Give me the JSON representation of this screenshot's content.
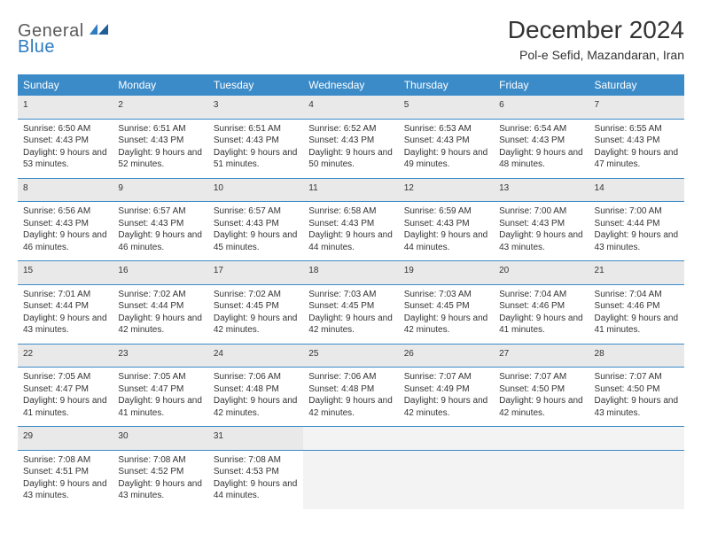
{
  "brand": {
    "general": "General",
    "blue": "Blue"
  },
  "title": "December 2024",
  "location": "Pol-e Sefid, Mazandaran, Iran",
  "header_bg": "#3b8bc9",
  "daynum_bg": "#e9e9e9",
  "empty_bg": "#f3f3f3",
  "dow": [
    "Sunday",
    "Monday",
    "Tuesday",
    "Wednesday",
    "Thursday",
    "Friday",
    "Saturday"
  ],
  "weeks": [
    [
      {
        "n": "1",
        "sr": "6:50 AM",
        "ss": "4:43 PM",
        "dl": "9 hours and 53 minutes."
      },
      {
        "n": "2",
        "sr": "6:51 AM",
        "ss": "4:43 PM",
        "dl": "9 hours and 52 minutes."
      },
      {
        "n": "3",
        "sr": "6:51 AM",
        "ss": "4:43 PM",
        "dl": "9 hours and 51 minutes."
      },
      {
        "n": "4",
        "sr": "6:52 AM",
        "ss": "4:43 PM",
        "dl": "9 hours and 50 minutes."
      },
      {
        "n": "5",
        "sr": "6:53 AM",
        "ss": "4:43 PM",
        "dl": "9 hours and 49 minutes."
      },
      {
        "n": "6",
        "sr": "6:54 AM",
        "ss": "4:43 PM",
        "dl": "9 hours and 48 minutes."
      },
      {
        "n": "7",
        "sr": "6:55 AM",
        "ss": "4:43 PM",
        "dl": "9 hours and 47 minutes."
      }
    ],
    [
      {
        "n": "8",
        "sr": "6:56 AM",
        "ss": "4:43 PM",
        "dl": "9 hours and 46 minutes."
      },
      {
        "n": "9",
        "sr": "6:57 AM",
        "ss": "4:43 PM",
        "dl": "9 hours and 46 minutes."
      },
      {
        "n": "10",
        "sr": "6:57 AM",
        "ss": "4:43 PM",
        "dl": "9 hours and 45 minutes."
      },
      {
        "n": "11",
        "sr": "6:58 AM",
        "ss": "4:43 PM",
        "dl": "9 hours and 44 minutes."
      },
      {
        "n": "12",
        "sr": "6:59 AM",
        "ss": "4:43 PM",
        "dl": "9 hours and 44 minutes."
      },
      {
        "n": "13",
        "sr": "7:00 AM",
        "ss": "4:43 PM",
        "dl": "9 hours and 43 minutes."
      },
      {
        "n": "14",
        "sr": "7:00 AM",
        "ss": "4:44 PM",
        "dl": "9 hours and 43 minutes."
      }
    ],
    [
      {
        "n": "15",
        "sr": "7:01 AM",
        "ss": "4:44 PM",
        "dl": "9 hours and 43 minutes."
      },
      {
        "n": "16",
        "sr": "7:02 AM",
        "ss": "4:44 PM",
        "dl": "9 hours and 42 minutes."
      },
      {
        "n": "17",
        "sr": "7:02 AM",
        "ss": "4:45 PM",
        "dl": "9 hours and 42 minutes."
      },
      {
        "n": "18",
        "sr": "7:03 AM",
        "ss": "4:45 PM",
        "dl": "9 hours and 42 minutes."
      },
      {
        "n": "19",
        "sr": "7:03 AM",
        "ss": "4:45 PM",
        "dl": "9 hours and 42 minutes."
      },
      {
        "n": "20",
        "sr": "7:04 AM",
        "ss": "4:46 PM",
        "dl": "9 hours and 41 minutes."
      },
      {
        "n": "21",
        "sr": "7:04 AM",
        "ss": "4:46 PM",
        "dl": "9 hours and 41 minutes."
      }
    ],
    [
      {
        "n": "22",
        "sr": "7:05 AM",
        "ss": "4:47 PM",
        "dl": "9 hours and 41 minutes."
      },
      {
        "n": "23",
        "sr": "7:05 AM",
        "ss": "4:47 PM",
        "dl": "9 hours and 41 minutes."
      },
      {
        "n": "24",
        "sr": "7:06 AM",
        "ss": "4:48 PM",
        "dl": "9 hours and 42 minutes."
      },
      {
        "n": "25",
        "sr": "7:06 AM",
        "ss": "4:48 PM",
        "dl": "9 hours and 42 minutes."
      },
      {
        "n": "26",
        "sr": "7:07 AM",
        "ss": "4:49 PM",
        "dl": "9 hours and 42 minutes."
      },
      {
        "n": "27",
        "sr": "7:07 AM",
        "ss": "4:50 PM",
        "dl": "9 hours and 42 minutes."
      },
      {
        "n": "28",
        "sr": "7:07 AM",
        "ss": "4:50 PM",
        "dl": "9 hours and 43 minutes."
      }
    ],
    [
      {
        "n": "29",
        "sr": "7:08 AM",
        "ss": "4:51 PM",
        "dl": "9 hours and 43 minutes."
      },
      {
        "n": "30",
        "sr": "7:08 AM",
        "ss": "4:52 PM",
        "dl": "9 hours and 43 minutes."
      },
      {
        "n": "31",
        "sr": "7:08 AM",
        "ss": "4:53 PM",
        "dl": "9 hours and 44 minutes."
      },
      null,
      null,
      null,
      null
    ]
  ],
  "labels": {
    "sunrise": "Sunrise:",
    "sunset": "Sunset:",
    "daylight": "Daylight:"
  }
}
